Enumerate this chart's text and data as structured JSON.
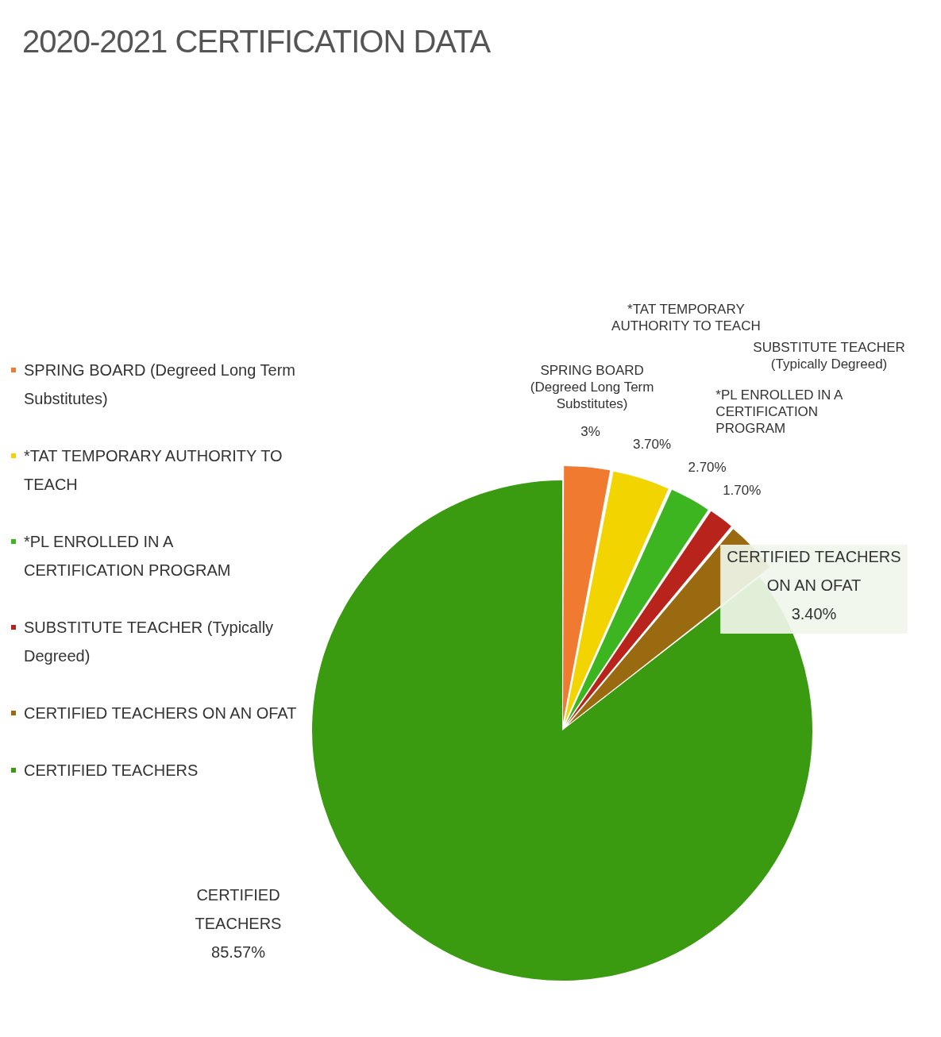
{
  "chart_data": {
    "type": "pie",
    "title": "2020-2021 CERTIFICATION DATA",
    "categories": [
      "SPRING BOARD (Degreed Long Term Substitutes)",
      "*TAT TEMPORARY AUTHORITY TO TEACH",
      "*PL ENROLLED IN A CERTIFICATION PROGRAM",
      "SUBSTITUTE TEACHER (Typically Degreed)",
      "CERTIFIED TEACHERS ON AN OFAT",
      "CERTIFIED TEACHERS"
    ],
    "values": [
      3,
      3.7,
      2.7,
      1.7,
      3.4,
      85.57
    ],
    "value_labels": [
      "3%",
      "3.70%",
      "2.70%",
      "1.70%",
      "3.40%",
      "85.57%"
    ],
    "colors": [
      "#f07a30",
      "#f2d400",
      "#3cb521",
      "#b8241c",
      "#9a6a10",
      "#3a9a10"
    ],
    "legend": "left"
  }
}
